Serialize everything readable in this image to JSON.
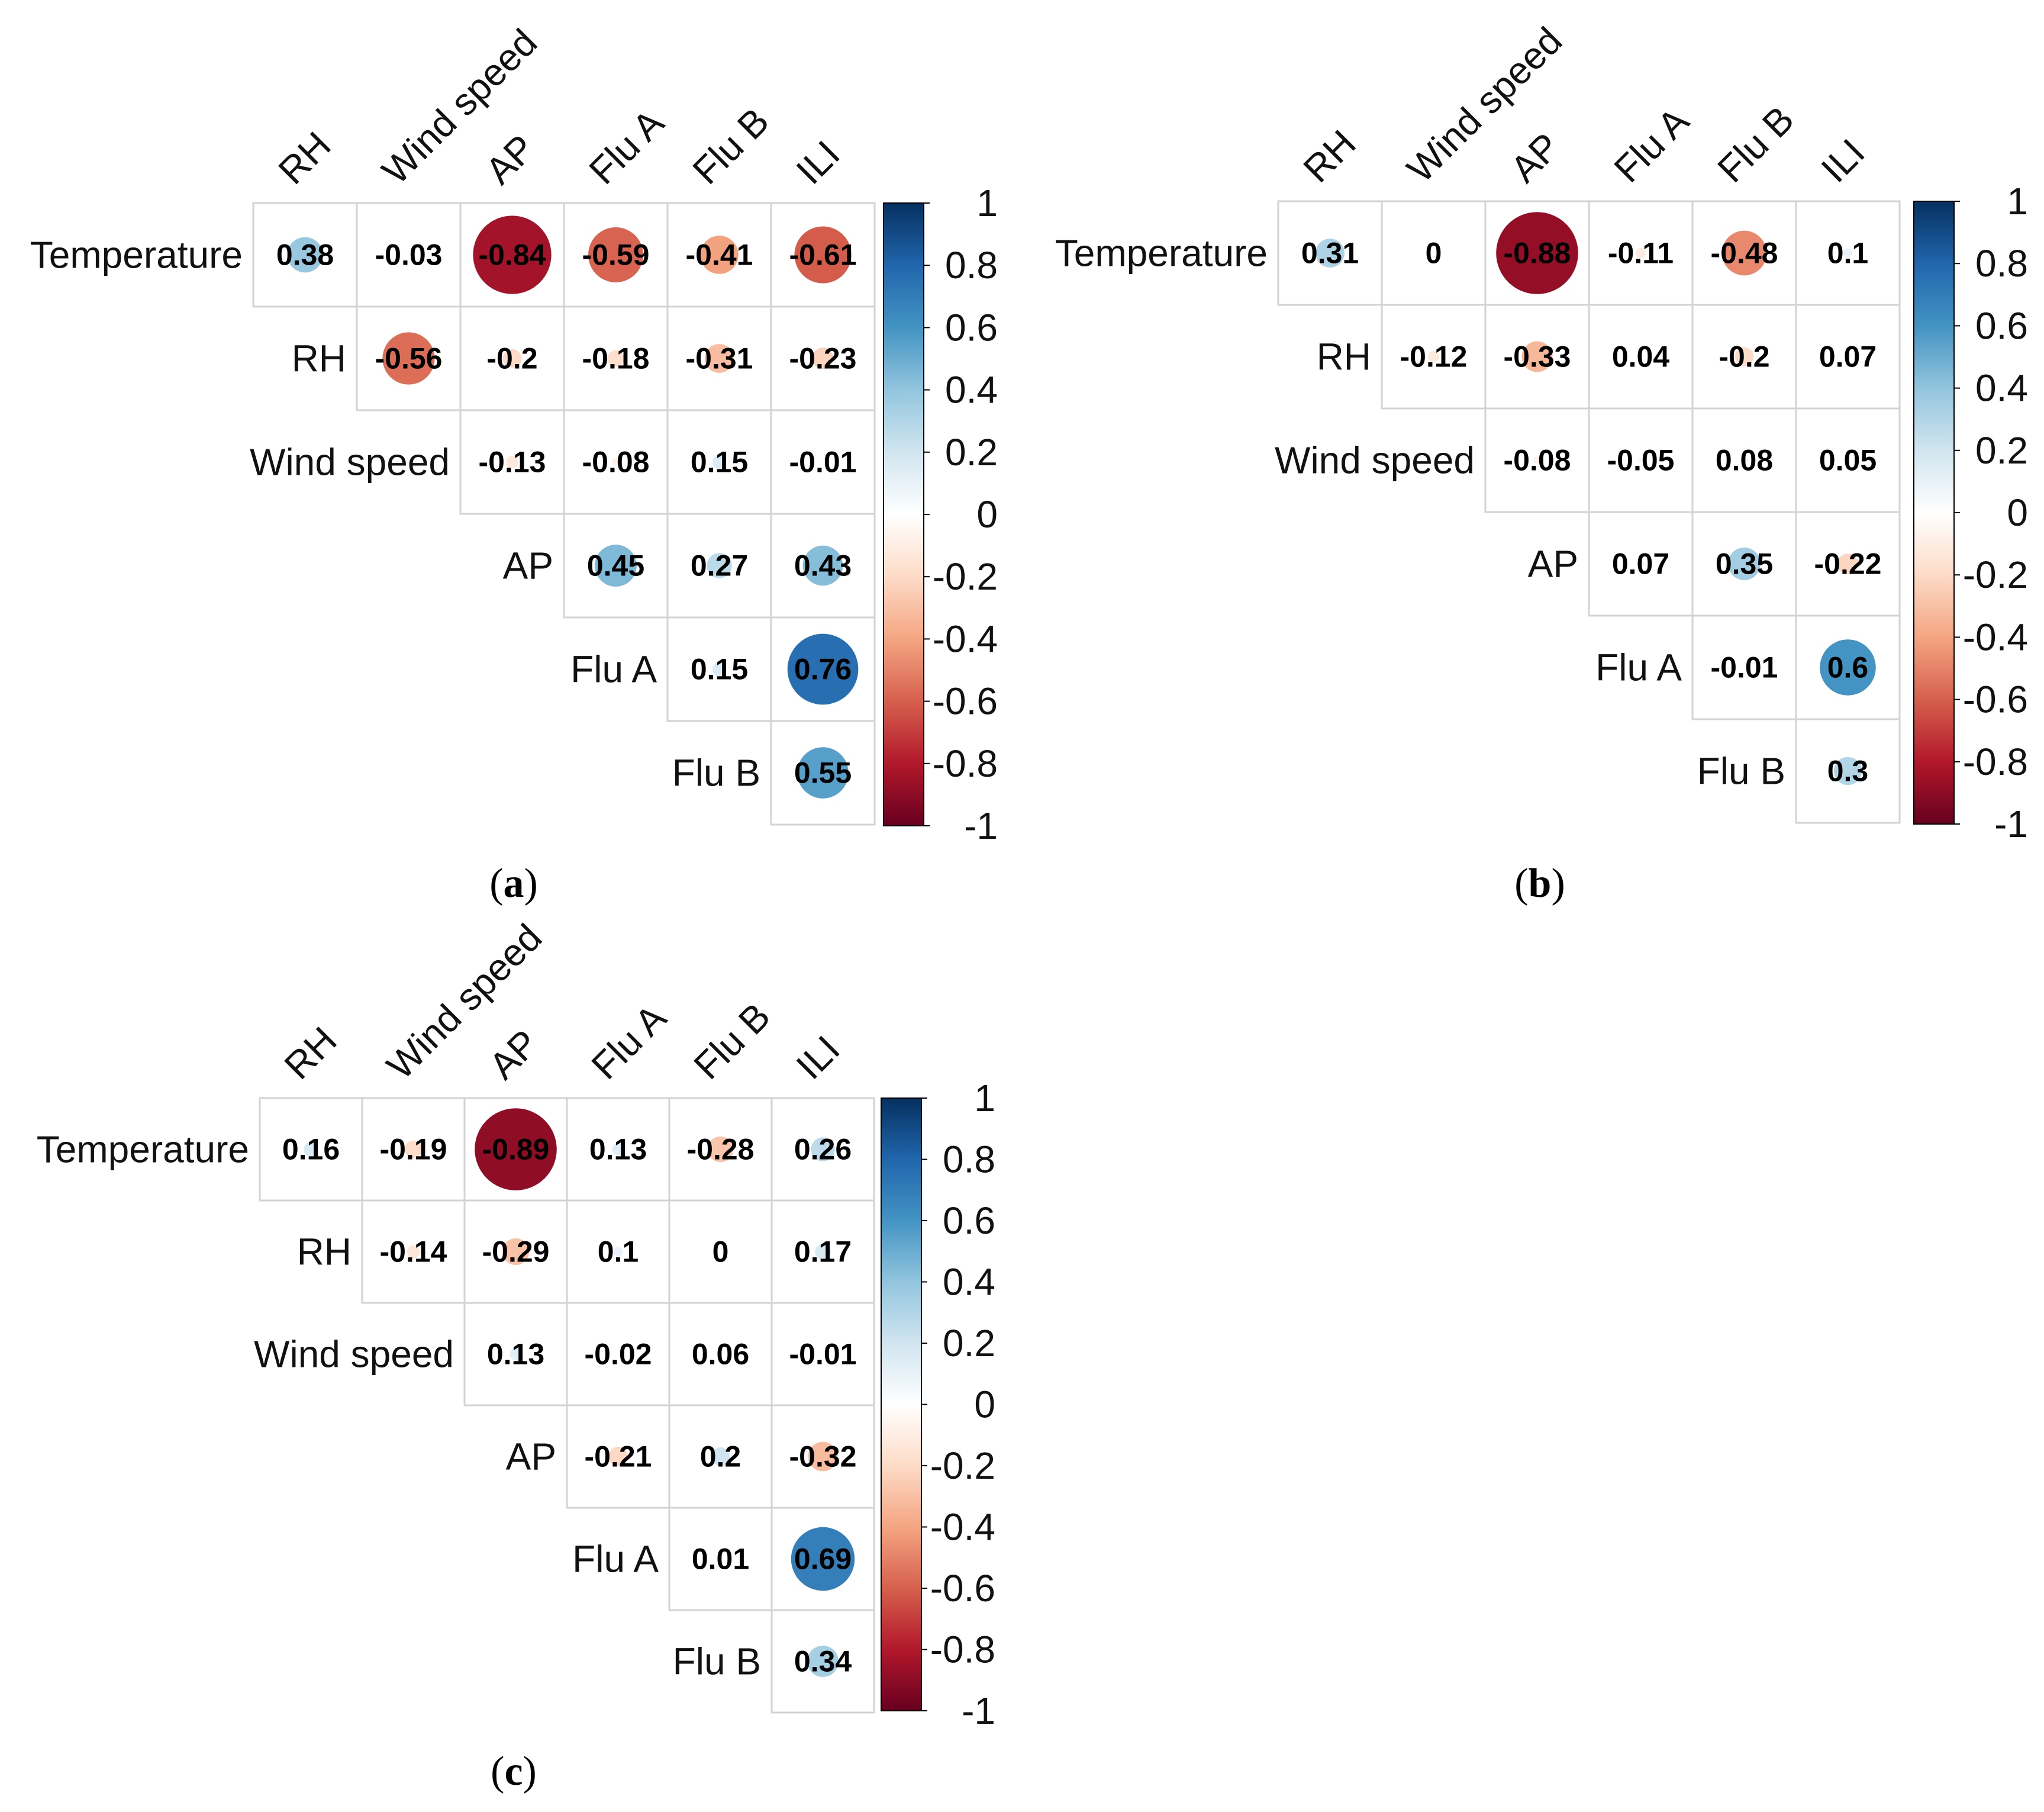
{
  "chart_data": [
    {
      "type": "heatmap",
      "panel_label": "a",
      "row_labels": [
        "Temperature",
        "RH",
        "Wind speed",
        "AP",
        "Flu A",
        "Flu B"
      ],
      "column_labels": [
        "RH",
        "Wind speed",
        "AP",
        "Flu A",
        "Flu B",
        "ILI"
      ],
      "matrix_shape": "upper-triangle",
      "values": [
        [
          0.38,
          -0.03,
          -0.84,
          -0.59,
          -0.41,
          -0.61
        ],
        [
          -0.56,
          -0.2,
          -0.18,
          -0.31,
          -0.23
        ],
        [
          -0.13,
          -0.08,
          0.15,
          -0.01
        ],
        [
          0.45,
          0.27,
          0.43
        ],
        [
          0.15,
          0.76
        ],
        [
          0.55
        ]
      ],
      "colorbar": {
        "min": -1,
        "max": 1,
        "ticks": [
          "1",
          "0.8",
          "0.6",
          "0.4",
          "0.2",
          "0",
          "-0.2",
          "-0.4",
          "-0.6",
          "-0.8",
          "-1"
        ]
      }
    },
    {
      "type": "heatmap",
      "panel_label": "b",
      "row_labels": [
        "Temperature",
        "RH",
        "Wind speed",
        "AP",
        "Flu A",
        "Flu B"
      ],
      "column_labels": [
        "RH",
        "Wind speed",
        "AP",
        "Flu A",
        "Flu B",
        "ILI"
      ],
      "matrix_shape": "upper-triangle",
      "values": [
        [
          0.31,
          0,
          -0.88,
          -0.11,
          -0.48,
          0.1
        ],
        [
          -0.12,
          -0.33,
          0.04,
          -0.2,
          0.07
        ],
        [
          -0.08,
          -0.05,
          0.08,
          0.05
        ],
        [
          0.07,
          0.35,
          -0.22
        ],
        [
          -0.01,
          0.6
        ],
        [
          0.3
        ]
      ],
      "colorbar": {
        "min": -1,
        "max": 1,
        "ticks": [
          "1",
          "0.8",
          "0.6",
          "0.4",
          "0.2",
          "0",
          "-0.2",
          "-0.4",
          "-0.6",
          "-0.8",
          "-1"
        ]
      }
    },
    {
      "type": "heatmap",
      "panel_label": "c",
      "row_labels": [
        "Temperature",
        "RH",
        "Wind speed",
        "AP",
        "Flu A",
        "Flu B"
      ],
      "column_labels": [
        "RH",
        "Wind speed",
        "AP",
        "Flu A",
        "Flu B",
        "ILI"
      ],
      "matrix_shape": "upper-triangle",
      "values": [
        [
          0.16,
          -0.19,
          -0.89,
          0.13,
          -0.28,
          0.26
        ],
        [
          -0.14,
          -0.29,
          0.1,
          0,
          0.17
        ],
        [
          0.13,
          -0.02,
          0.06,
          -0.01
        ],
        [
          -0.21,
          0.2,
          -0.32
        ],
        [
          0.01,
          0.69
        ],
        [
          0.34
        ]
      ],
      "colorbar": {
        "min": -1,
        "max": 1,
        "ticks": [
          "1",
          "0.8",
          "0.6",
          "0.4",
          "0.2",
          "0",
          "-0.2",
          "-0.4",
          "-0.6",
          "-0.8",
          "-1"
        ]
      }
    }
  ],
  "colors": {
    "palette": [
      "#67001F",
      "#B2182B",
      "#D6604D",
      "#F4A582",
      "#FDDBC7",
      "#FFFFFF",
      "#D1E5F0",
      "#92C5DE",
      "#4393C3",
      "#2166AC",
      "#053061"
    ],
    "grid_line": "#D3D3D3",
    "colorbar_frame": "#000000"
  }
}
